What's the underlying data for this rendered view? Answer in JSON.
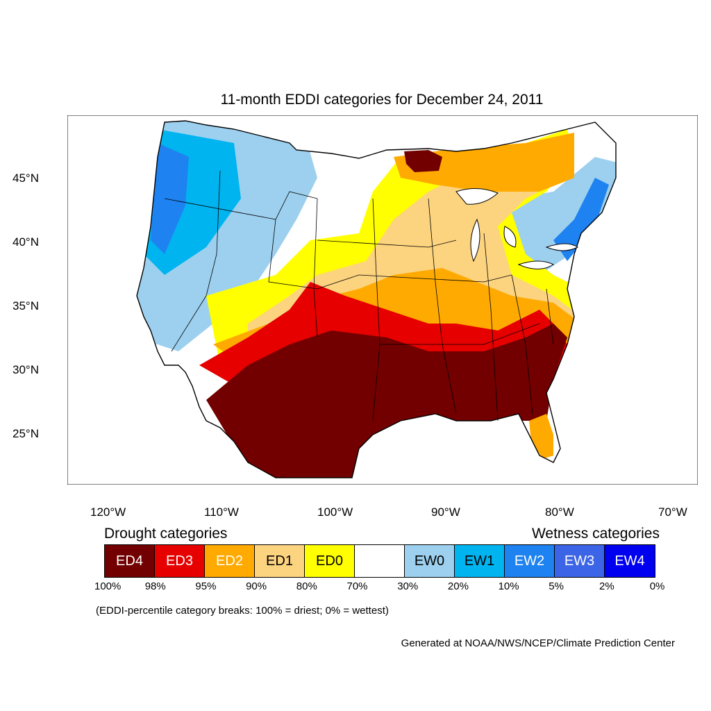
{
  "title": "11-month EDDI categories for December 24, 2011",
  "lat_ticks": [
    "45°N",
    "40°N",
    "35°N",
    "30°N",
    "25°N"
  ],
  "lon_ticks": [
    "120°W",
    "110°W",
    "100°W",
    "90°W",
    "80°W",
    "70°W"
  ],
  "legend": {
    "drought_heading": "Drought categories",
    "wetness_heading": "Wetness categories",
    "categories": [
      {
        "label": "ED4",
        "color": "#730000",
        "text_color": "#ffffff"
      },
      {
        "label": "ED3",
        "color": "#e60000",
        "text_color": "#ffffff"
      },
      {
        "label": "ED2",
        "color": "#ffaa00",
        "text_color": "#ffffff"
      },
      {
        "label": "ED1",
        "color": "#fcd37f",
        "text_color": "#000000"
      },
      {
        "label": "ED0",
        "color": "#ffff00",
        "text_color": "#000000"
      },
      {
        "label": "",
        "color": "#ffffff",
        "text_color": "#000000"
      },
      {
        "label": "EW0",
        "color": "#9dd0ee",
        "text_color": "#000000"
      },
      {
        "label": "EW1",
        "color": "#00b4f0",
        "text_color": "#000000"
      },
      {
        "label": "EW2",
        "color": "#1e82f0",
        "text_color": "#ffffff"
      },
      {
        "label": "EW3",
        "color": "#3c64e6",
        "text_color": "#ffffff"
      },
      {
        "label": "EW4",
        "color": "#0000f0",
        "text_color": "#ffffff"
      }
    ],
    "breaks": [
      "100%",
      "98%",
      "95%",
      "90%",
      "80%",
      "70%",
      "30%",
      "20%",
      "10%",
      "5%",
      "2%",
      "0%"
    ]
  },
  "note": "(EDDI-percentile category breaks: 100% = driest; 0% = wettest)",
  "credit": "Generated at NOAA/NWS/NCEP/Climate Prediction Center"
}
